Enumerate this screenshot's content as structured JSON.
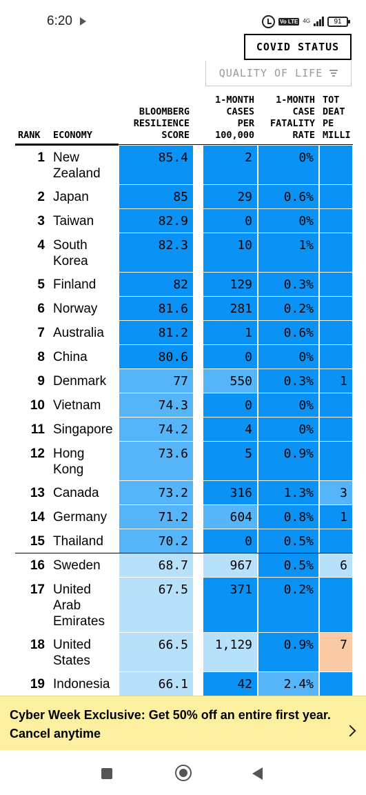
{
  "status_bar": {
    "time": "6:20",
    "network": "4G",
    "volte": "Vo LTE",
    "battery": "91"
  },
  "controls": {
    "covid_status": "COVID STATUS",
    "quality_of_life": "QUALITY OF LIFE"
  },
  "headers": {
    "rank": "RANK",
    "economy": "ECONOMY",
    "score": "BLOOMBERG\nRESILIENCE\nSCORE",
    "cases": "1-MONTH\nCASES\nPER\n100,000",
    "cfr": "1-MONTH\nCASE\nFATALITY\nRATE",
    "deaths": "TOT\nDEAT\nPE\nMILLI"
  },
  "colors": {
    "dark_blue": "#0a93f5",
    "mid_blue": "#56b5f8",
    "light_blue": "#b7e0fb",
    "peach": "#f9caa4"
  },
  "rows": [
    {
      "rank": "1",
      "economy": "New Zealand",
      "score": "85.4",
      "cases": "2",
      "cfr": "0%",
      "deaths": ""
    },
    {
      "rank": "2",
      "economy": "Japan",
      "score": "85",
      "cases": "29",
      "cfr": "0.6%",
      "deaths": ""
    },
    {
      "rank": "3",
      "economy": "Taiwan",
      "score": "82.9",
      "cases": "0",
      "cfr": "0%",
      "deaths": ""
    },
    {
      "rank": "4",
      "economy": "South Korea",
      "score": "82.3",
      "cases": "10",
      "cfr": "1%",
      "deaths": ""
    },
    {
      "rank": "5",
      "economy": "Finland",
      "score": "82",
      "cases": "129",
      "cfr": "0.3%",
      "deaths": ""
    },
    {
      "rank": "6",
      "economy": "Norway",
      "score": "81.6",
      "cases": "281",
      "cfr": "0.2%",
      "deaths": ""
    },
    {
      "rank": "7",
      "economy": "Australia",
      "score": "81.2",
      "cases": "1",
      "cfr": "0.6%",
      "deaths": ""
    },
    {
      "rank": "8",
      "economy": "China",
      "score": "80.6",
      "cases": "0",
      "cfr": "0%",
      "deaths": ""
    },
    {
      "rank": "9",
      "economy": "Denmark",
      "score": "77",
      "cases": "550",
      "cfr": "0.3%",
      "deaths": "1"
    },
    {
      "rank": "10",
      "economy": "Vietnam",
      "score": "74.3",
      "cases": "0",
      "cfr": "0%",
      "deaths": ""
    },
    {
      "rank": "11",
      "economy": "Singapore",
      "score": "74.2",
      "cases": "4",
      "cfr": "0%",
      "deaths": ""
    },
    {
      "rank": "12",
      "economy": "Hong Kong",
      "score": "73.6",
      "cases": "5",
      "cfr": "0.9%",
      "deaths": ""
    },
    {
      "rank": "13",
      "economy": "Canada",
      "score": "73.2",
      "cases": "316",
      "cfr": "1.3%",
      "deaths": "3"
    },
    {
      "rank": "14",
      "economy": "Germany",
      "score": "71.2",
      "cases": "604",
      "cfr": "0.8%",
      "deaths": "1"
    },
    {
      "rank": "15",
      "economy": "Thailand",
      "score": "70.2",
      "cases": "0",
      "cfr": "0.5%",
      "deaths": ""
    },
    {
      "rank": "16",
      "economy": "Sweden",
      "score": "68.7",
      "cases": "967",
      "cfr": "0.5%",
      "deaths": "6"
    },
    {
      "rank": "17",
      "economy": "United Arab Emirates",
      "score": "67.5",
      "cases": "371",
      "cfr": "0.2%",
      "deaths": ""
    },
    {
      "rank": "18",
      "economy": "United States",
      "score": "66.5",
      "cases": "1,129",
      "cfr": "0.9%",
      "deaths": "7"
    },
    {
      "rank": "19",
      "economy": "Indonesia",
      "score": "66.1",
      "cases": "42",
      "cfr": "2.4%",
      "deaths": ""
    }
  ],
  "promo": {
    "text": "Cyber Week Exclusive: Get 50% off an entire first year. Cancel anytime"
  }
}
